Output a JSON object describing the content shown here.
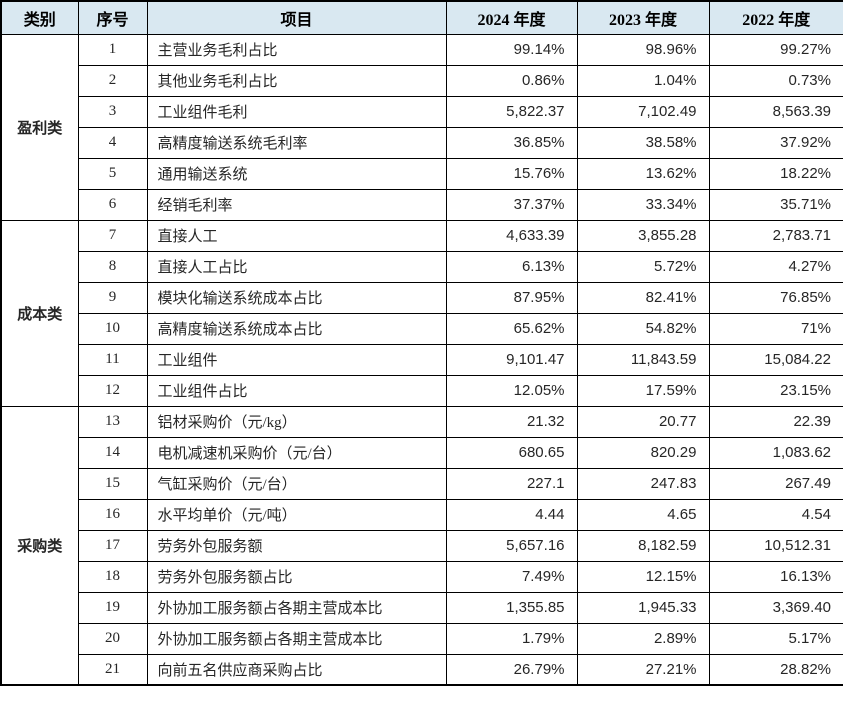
{
  "colors": {
    "header_bg": "#d9e8f1",
    "border": "#000000",
    "text": "#262626"
  },
  "table": {
    "columns": [
      "类别",
      "序号",
      "项目",
      "2024 年度",
      "2023 年度",
      "2022 年度"
    ],
    "groups": [
      {
        "category": "盈利类",
        "rows": [
          {
            "no": "1",
            "item": "主营业务毛利占比",
            "y2024": "99.14%",
            "y2023": "98.96%",
            "y2022": "99.27%"
          },
          {
            "no": "2",
            "item": "其他业务毛利占比",
            "y2024": "0.86%",
            "y2023": "1.04%",
            "y2022": "0.73%"
          },
          {
            "no": "3",
            "item": "工业组件毛利",
            "y2024": "5,822.37",
            "y2023": "7,102.49",
            "y2022": "8,563.39"
          },
          {
            "no": "4",
            "item": "高精度输送系统毛利率",
            "y2024": "36.85%",
            "y2023": "38.58%",
            "y2022": "37.92%"
          },
          {
            "no": "5",
            "item": "通用输送系统",
            "y2024": "15.76%",
            "y2023": "13.62%",
            "y2022": "18.22%"
          },
          {
            "no": "6",
            "item": "经销毛利率",
            "y2024": "37.37%",
            "y2023": "33.34%",
            "y2022": "35.71%"
          }
        ]
      },
      {
        "category": "成本类",
        "rows": [
          {
            "no": "7",
            "item": "直接人工",
            "y2024": "4,633.39",
            "y2023": "3,855.28",
            "y2022": "2,783.71"
          },
          {
            "no": "8",
            "item": "直接人工占比",
            "y2024": "6.13%",
            "y2023": "5.72%",
            "y2022": "4.27%"
          },
          {
            "no": "9",
            "item": "模块化输送系统成本占比",
            "y2024": "87.95%",
            "y2023": "82.41%",
            "y2022": "76.85%"
          },
          {
            "no": "10",
            "item": "高精度输送系统成本占比",
            "y2024": "65.62%",
            "y2023": "54.82%",
            "y2022": "71%"
          },
          {
            "no": "11",
            "item": "工业组件",
            "y2024": "9,101.47",
            "y2023": "11,843.59",
            "y2022": "15,084.22"
          },
          {
            "no": "12",
            "item": "工业组件占比",
            "y2024": "12.05%",
            "y2023": "17.59%",
            "y2022": "23.15%"
          }
        ]
      },
      {
        "category": "采购类",
        "rows": [
          {
            "no": "13",
            "item": "铝材采购价（元/kg）",
            "y2024": "21.32",
            "y2023": "20.77",
            "y2022": "22.39"
          },
          {
            "no": "14",
            "item": "电机减速机采购价（元/台）",
            "y2024": "680.65",
            "y2023": "820.29",
            "y2022": "1,083.62"
          },
          {
            "no": "15",
            "item": "气缸采购价（元/台）",
            "y2024": "227.1",
            "y2023": "247.83",
            "y2022": "267.49"
          },
          {
            "no": "16",
            "item": "水平均单价（元/吨）",
            "y2024": "4.44",
            "y2023": "4.65",
            "y2022": "4.54"
          },
          {
            "no": "17",
            "item": "劳务外包服务额",
            "y2024": "5,657.16",
            "y2023": "8,182.59",
            "y2022": "10,512.31"
          },
          {
            "no": "18",
            "item": "劳务外包服务额占比",
            "y2024": "7.49%",
            "y2023": "12.15%",
            "y2022": "16.13%"
          },
          {
            "no": "19",
            "item": "外协加工服务额占各期主营成本比",
            "y2024": "1,355.85",
            "y2023": "1,945.33",
            "y2022": "3,369.40"
          },
          {
            "no": "20",
            "item": "外协加工服务额占各期主营成本比",
            "y2024": "1.79%",
            "y2023": "2.89%",
            "y2022": "5.17%"
          },
          {
            "no": "21",
            "item": "向前五名供应商采购占比",
            "y2024": "26.79%",
            "y2023": "27.21%",
            "y2022": "28.82%"
          }
        ]
      }
    ]
  }
}
